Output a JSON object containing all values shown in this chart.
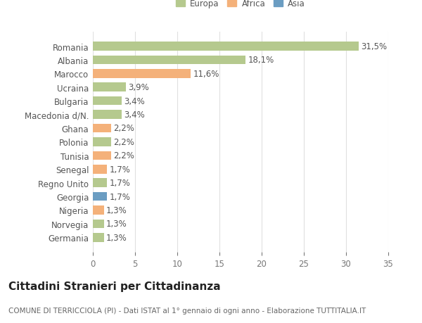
{
  "categories": [
    "Germania",
    "Norvegia",
    "Nigeria",
    "Georgia",
    "Regno Unito",
    "Senegal",
    "Tunisia",
    "Polonia",
    "Ghana",
    "Macedonia d/N.",
    "Bulgaria",
    "Ucraina",
    "Marocco",
    "Albania",
    "Romania"
  ],
  "values": [
    1.3,
    1.3,
    1.3,
    1.7,
    1.7,
    1.7,
    2.2,
    2.2,
    2.2,
    3.4,
    3.4,
    3.9,
    11.6,
    18.1,
    31.5
  ],
  "labels": [
    "1,3%",
    "1,3%",
    "1,3%",
    "1,7%",
    "1,7%",
    "1,7%",
    "2,2%",
    "2,2%",
    "2,2%",
    "3,4%",
    "3,4%",
    "3,9%",
    "11,6%",
    "18,1%",
    "31,5%"
  ],
  "continent": [
    "Europa",
    "Europa",
    "Africa",
    "Asia",
    "Europa",
    "Africa",
    "Africa",
    "Europa",
    "Africa",
    "Europa",
    "Europa",
    "Europa",
    "Africa",
    "Europa",
    "Europa"
  ],
  "colors": {
    "Europa": "#b5c98e",
    "Africa": "#f4b17a",
    "Asia": "#6b9dc2"
  },
  "xlim": [
    0,
    35
  ],
  "xticks": [
    0,
    5,
    10,
    15,
    20,
    25,
    30,
    35
  ],
  "title": "Cittadini Stranieri per Cittadinanza",
  "subtitle": "COMUNE DI TERRICCIOLA (PI) - Dati ISTAT al 1° gennaio di ogni anno - Elaborazione TUTTITALIA.IT",
  "background_color": "#ffffff",
  "grid_color": "#e0e0e0",
  "bar_height": 0.65,
  "label_fontsize": 8.5,
  "tick_fontsize": 8.5,
  "title_fontsize": 11,
  "subtitle_fontsize": 7.5
}
